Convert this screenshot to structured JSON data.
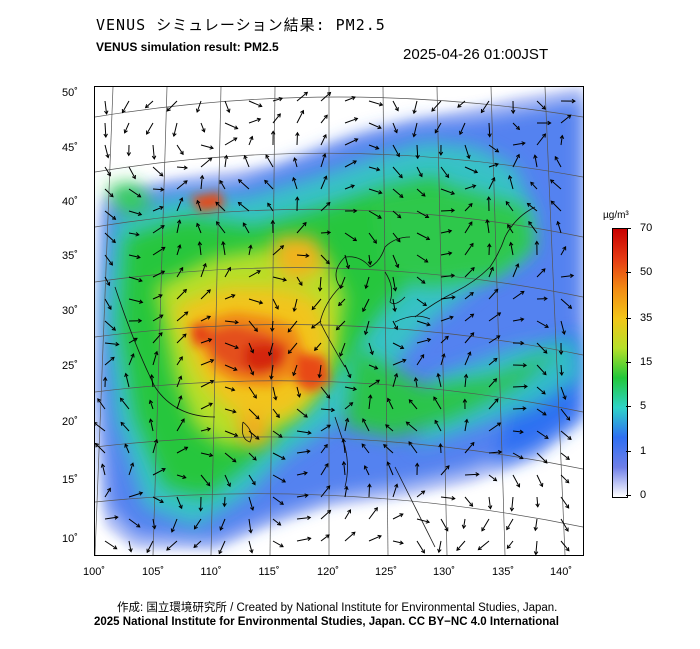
{
  "title_jp": "VENUS シミュレーション結果: PM2.5",
  "title_en": "VENUS simulation result: PM2.5",
  "timestamp": "2025-04-26 01:00JST",
  "latitude_labels": [
    "50˚",
    "45˚",
    "40˚",
    "35˚",
    "30˚",
    "25˚",
    "20˚",
    "15˚",
    "10˚"
  ],
  "longitude_labels": [
    "100˚",
    "105˚",
    "110˚",
    "115˚",
    "120˚",
    "125˚",
    "130˚",
    "135˚",
    "140˚"
  ],
  "colorbar": {
    "unit": "µg/m³",
    "ticks": [
      "70",
      "50",
      "35",
      "15",
      "5",
      "1",
      "0"
    ],
    "colors": [
      "#ffffff",
      "#6f7fe8",
      "#2f6ff2",
      "#2fd3c8",
      "#22c83a",
      "#b6e02a",
      "#f2c619",
      "#f28a14",
      "#e53a14",
      "#c80000"
    ]
  },
  "credit": "作成: 国立環境研究所 / Created by National Institute for Environmental Studies, Japan.",
  "copyright": "2025 National Institute for Environmental Studies, Japan. CC BY−NC 4.0 International"
}
